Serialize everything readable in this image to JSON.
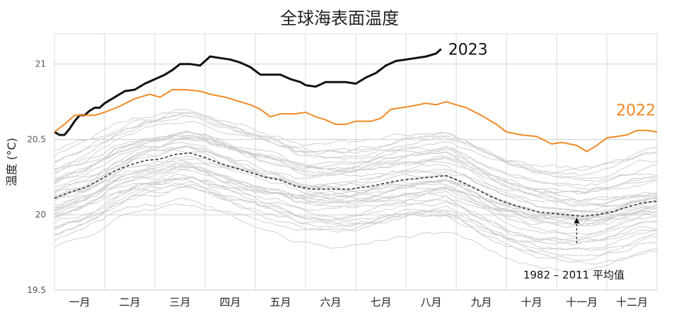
{
  "chart_data": {
    "type": "line",
    "title": "全球海表面温度",
    "ylabel": "温度 (°C)",
    "xlabel": "",
    "ylim": [
      19.5,
      21.2
    ],
    "yticks": [
      19.5,
      20,
      20.5,
      21
    ],
    "ytick_labels": [
      "19.5",
      "20",
      "20.5",
      "21"
    ],
    "categories": [
      "一月",
      "二月",
      "三月",
      "四月",
      "五月",
      "六月",
      "七月",
      "八月",
      "九月",
      "十月",
      "十一月",
      "十二月"
    ],
    "grid": true,
    "series": [
      {
        "name": "2023",
        "color": "#111111",
        "values": [
          [
            0,
            20.55
          ],
          [
            0.1,
            20.53
          ],
          [
            0.2,
            20.53
          ],
          [
            0.3,
            20.57
          ],
          [
            0.4,
            20.62
          ],
          [
            0.5,
            20.66
          ],
          [
            0.6,
            20.66
          ],
          [
            0.7,
            20.69
          ],
          [
            0.8,
            20.71
          ],
          [
            0.9,
            20.71
          ],
          [
            1.0,
            20.74
          ],
          [
            1.2,
            20.78
          ],
          [
            1.4,
            20.82
          ],
          [
            1.6,
            20.83
          ],
          [
            1.8,
            20.87
          ],
          [
            2.0,
            20.9
          ],
          [
            2.2,
            20.93
          ],
          [
            2.35,
            20.96
          ],
          [
            2.5,
            21.0
          ],
          [
            2.7,
            21.0
          ],
          [
            2.9,
            20.99
          ],
          [
            3.1,
            21.05
          ],
          [
            3.3,
            21.04
          ],
          [
            3.5,
            21.03
          ],
          [
            3.7,
            21.01
          ],
          [
            3.9,
            20.98
          ],
          [
            4.1,
            20.93
          ],
          [
            4.3,
            20.93
          ],
          [
            4.5,
            20.93
          ],
          [
            4.7,
            20.9
          ],
          [
            4.9,
            20.88
          ],
          [
            5.0,
            20.86
          ],
          [
            5.2,
            20.85
          ],
          [
            5.4,
            20.88
          ],
          [
            5.6,
            20.88
          ],
          [
            5.8,
            20.88
          ],
          [
            6.0,
            20.87
          ],
          [
            6.2,
            20.91
          ],
          [
            6.4,
            20.94
          ],
          [
            6.6,
            20.99
          ],
          [
            6.8,
            21.02
          ],
          [
            7.0,
            21.03
          ],
          [
            7.2,
            21.04
          ],
          [
            7.4,
            21.05
          ],
          [
            7.6,
            21.07
          ],
          [
            7.7,
            21.1
          ]
        ]
      },
      {
        "name": "2022",
        "color": "#f08a24",
        "values": [
          [
            0,
            20.55
          ],
          [
            0.2,
            20.6
          ],
          [
            0.4,
            20.66
          ],
          [
            0.6,
            20.66
          ],
          [
            0.8,
            20.66
          ],
          [
            1.0,
            20.68
          ],
          [
            1.3,
            20.72
          ],
          [
            1.6,
            20.77
          ],
          [
            1.9,
            20.8
          ],
          [
            2.1,
            20.78
          ],
          [
            2.35,
            20.83
          ],
          [
            2.6,
            20.83
          ],
          [
            2.9,
            20.82
          ],
          [
            3.1,
            20.8
          ],
          [
            3.4,
            20.78
          ],
          [
            3.7,
            20.75
          ],
          [
            3.9,
            20.73
          ],
          [
            4.1,
            20.7
          ],
          [
            4.3,
            20.65
          ],
          [
            4.5,
            20.67
          ],
          [
            4.8,
            20.67
          ],
          [
            5.0,
            20.68
          ],
          [
            5.2,
            20.65
          ],
          [
            5.4,
            20.63
          ],
          [
            5.6,
            20.6
          ],
          [
            5.8,
            20.6
          ],
          [
            6.0,
            20.62
          ],
          [
            6.3,
            20.62
          ],
          [
            6.5,
            20.64
          ],
          [
            6.7,
            20.7
          ],
          [
            6.9,
            20.71
          ],
          [
            7.1,
            20.72
          ],
          [
            7.4,
            20.74
          ],
          [
            7.6,
            20.73
          ],
          [
            7.8,
            20.75
          ],
          [
            8.0,
            20.73
          ],
          [
            8.2,
            20.71
          ],
          [
            8.5,
            20.66
          ],
          [
            8.8,
            20.6
          ],
          [
            9.0,
            20.55
          ],
          [
            9.3,
            20.53
          ],
          [
            9.6,
            20.52
          ],
          [
            9.9,
            20.47
          ],
          [
            10.1,
            20.48
          ],
          [
            10.4,
            20.46
          ],
          [
            10.6,
            20.42
          ],
          [
            10.8,
            20.46
          ],
          [
            11.0,
            20.51
          ],
          [
            11.2,
            20.52
          ],
          [
            11.4,
            20.53
          ],
          [
            11.6,
            20.56
          ],
          [
            11.8,
            20.56
          ],
          [
            12.0,
            20.55
          ]
        ]
      },
      {
        "name": "1982 – 2011 平均值",
        "color": "#333333",
        "dashed": true,
        "values": [
          [
            0,
            20.11
          ],
          [
            0.3,
            20.15
          ],
          [
            0.6,
            20.18
          ],
          [
            0.9,
            20.23
          ],
          [
            1.2,
            20.29
          ],
          [
            1.5,
            20.33
          ],
          [
            1.8,
            20.36
          ],
          [
            2.1,
            20.37
          ],
          [
            2.4,
            20.4
          ],
          [
            2.7,
            20.41
          ],
          [
            3.0,
            20.38
          ],
          [
            3.3,
            20.34
          ],
          [
            3.6,
            20.31
          ],
          [
            3.9,
            20.28
          ],
          [
            4.2,
            20.25
          ],
          [
            4.5,
            20.23
          ],
          [
            4.8,
            20.19
          ],
          [
            5.1,
            20.17
          ],
          [
            5.5,
            20.17
          ],
          [
            5.9,
            20.17
          ],
          [
            6.3,
            20.19
          ],
          [
            6.6,
            20.21
          ],
          [
            6.9,
            20.23
          ],
          [
            7.2,
            20.24
          ],
          [
            7.5,
            20.25
          ],
          [
            7.8,
            20.26
          ],
          [
            8.1,
            20.22
          ],
          [
            8.4,
            20.17
          ],
          [
            8.7,
            20.12
          ],
          [
            9.0,
            20.08
          ],
          [
            9.3,
            20.05
          ],
          [
            9.6,
            20.02
          ],
          [
            9.9,
            20.01
          ],
          [
            10.2,
            20.0
          ],
          [
            10.5,
            19.99
          ],
          [
            10.8,
            20.0
          ],
          [
            11.1,
            20.02
          ],
          [
            11.4,
            20.05
          ],
          [
            11.7,
            20.08
          ],
          [
            12.0,
            20.09
          ]
        ]
      }
    ],
    "series_labels": [
      "2023",
      "2022"
    ],
    "annotations": [
      {
        "text": "1982 – 2011 平均值",
        "x": 10.4,
        "y": 19.99
      }
    ],
    "background_series_color": "#cfcfcf"
  }
}
